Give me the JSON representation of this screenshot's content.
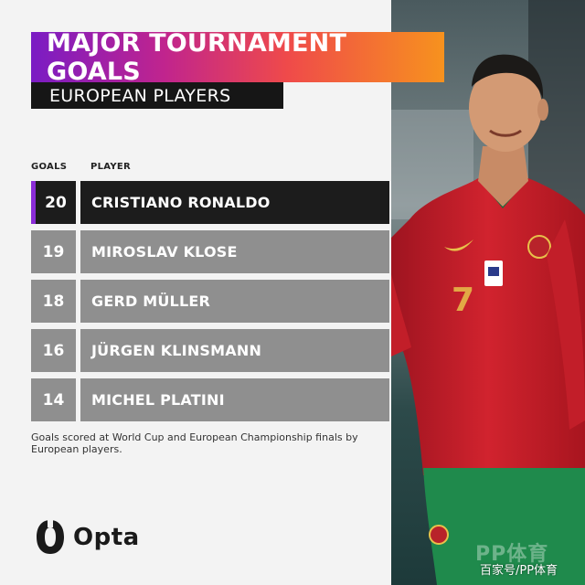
{
  "title": "MAJOR TOURNAMENT GOALS",
  "subtitle": "EUROPEAN PLAYERS",
  "columns": {
    "goals": "GOALS",
    "player": "PLAYER"
  },
  "rows": [
    {
      "goals": "20",
      "player": "CRISTIANO RONALDO"
    },
    {
      "goals": "19",
      "player": "MIROSLAV KLOSE"
    },
    {
      "goals": "18",
      "player": "GERD MÜLLER"
    },
    {
      "goals": "16",
      "player": "JÜRGEN KLINSMANN"
    },
    {
      "goals": "14",
      "player": "MICHEL PLATINI"
    }
  ],
  "footnote": "Goals scored at World Cup and European Championship finals by European players.",
  "brand": "Opta",
  "watermark": {
    "logo": "PP体育",
    "text": "百家号/PP体育"
  },
  "colors": {
    "gradient": [
      "#7a1cc4",
      "#c0248e",
      "#ef4a4a",
      "#f7921e"
    ],
    "highlight_row": "#1c1c1c",
    "row": "#8f8f8f",
    "accent": "#8a2bd6"
  }
}
